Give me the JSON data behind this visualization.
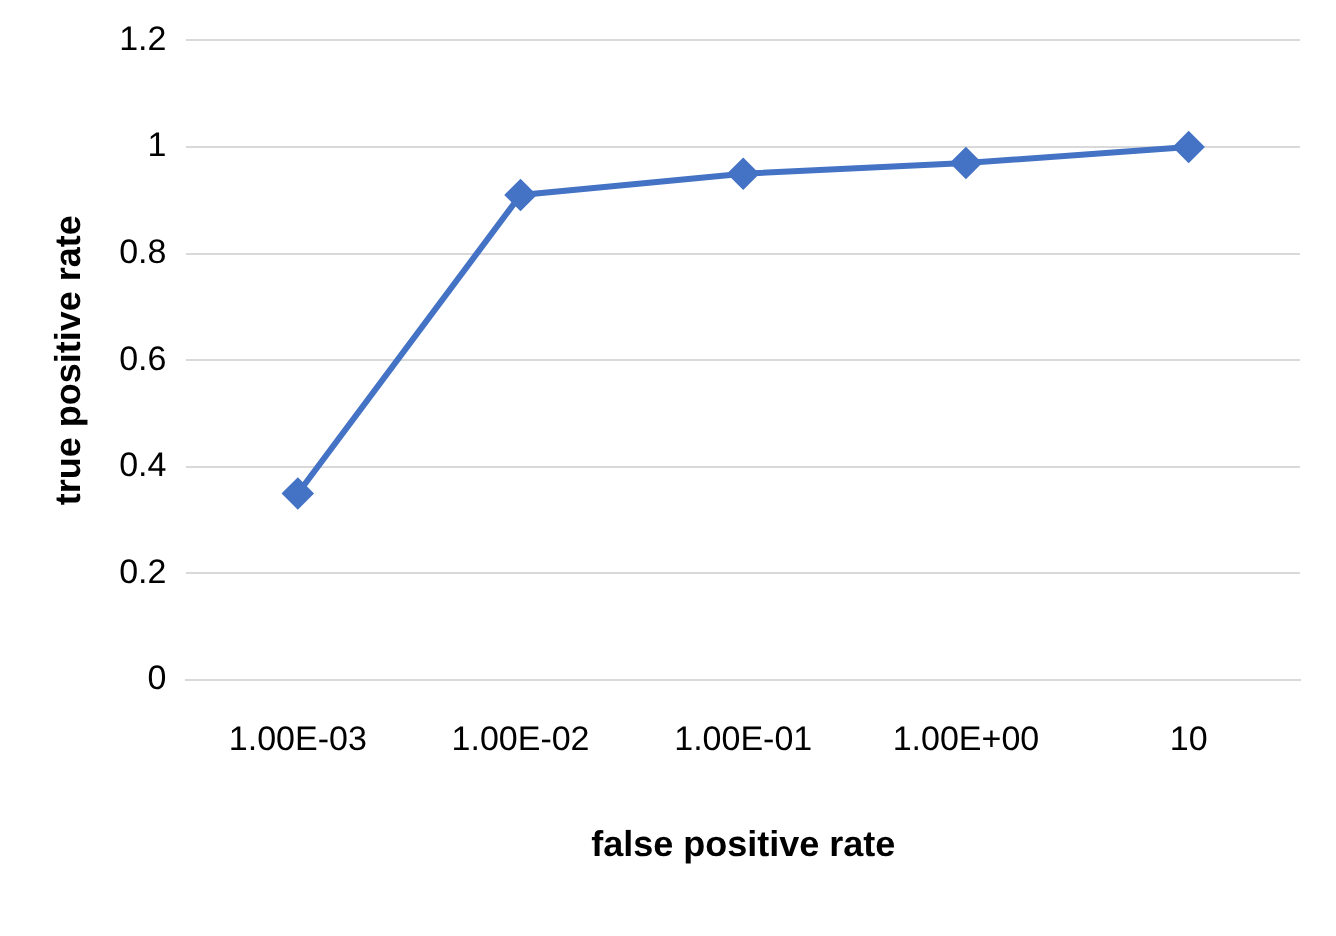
{
  "chart_data": {
    "type": "line",
    "xlabel": "false positive rate",
    "ylabel": "true positive rate",
    "categories": [
      "1.00E-03",
      "1.00E-02",
      "1.00E-01",
      "1.00E+00",
      "10"
    ],
    "series": [
      {
        "color": "#4472c4",
        "values": [
          0.35,
          0.91,
          0.95,
          0.97,
          1.0
        ]
      }
    ],
    "ylim": [
      0,
      1.2
    ],
    "yticks": [
      0,
      0.2,
      0.4,
      0.6,
      0.8,
      1,
      1.2
    ],
    "grid": "y",
    "legend": false,
    "marker": "diamond",
    "line_style": "solid"
  }
}
